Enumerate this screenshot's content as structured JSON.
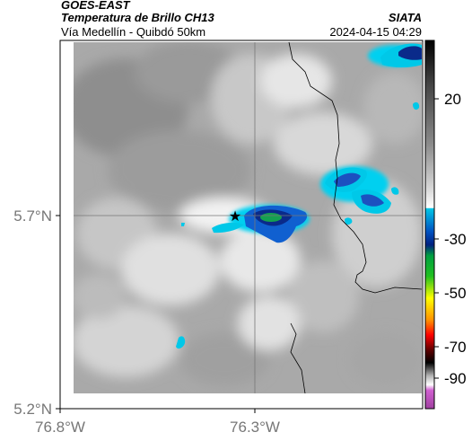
{
  "header": {
    "satellite": "GOES-EAST",
    "product": "Temperatura de Brillo CH13",
    "region": "Vía Medellín - Quibdó 50km",
    "org": "SIATA",
    "datetime": "2024-04-15 04:29"
  },
  "map": {
    "y_ticks": [
      {
        "label": "5.7°N",
        "value": 5.7
      },
      {
        "label": "5.2°N",
        "value": 5.2
      }
    ],
    "x_ticks": [
      {
        "label": "76.8°W",
        "value": -76.8
      },
      {
        "label": "76.3°W",
        "value": -76.3
      }
    ],
    "marker": {
      "symbol": "star",
      "color": "#000000"
    }
  },
  "colorbar": {
    "ticks": [
      "20",
      "-30",
      "-50",
      "-70",
      "-90"
    ],
    "colors": [
      "#000000",
      "#7f7f7f",
      "#ffffff",
      "#00a8d8",
      "#0030a0",
      "#008000",
      "#ffff00",
      "#ff0000",
      "#000000",
      "#ffffff",
      "#c040c0"
    ]
  }
}
